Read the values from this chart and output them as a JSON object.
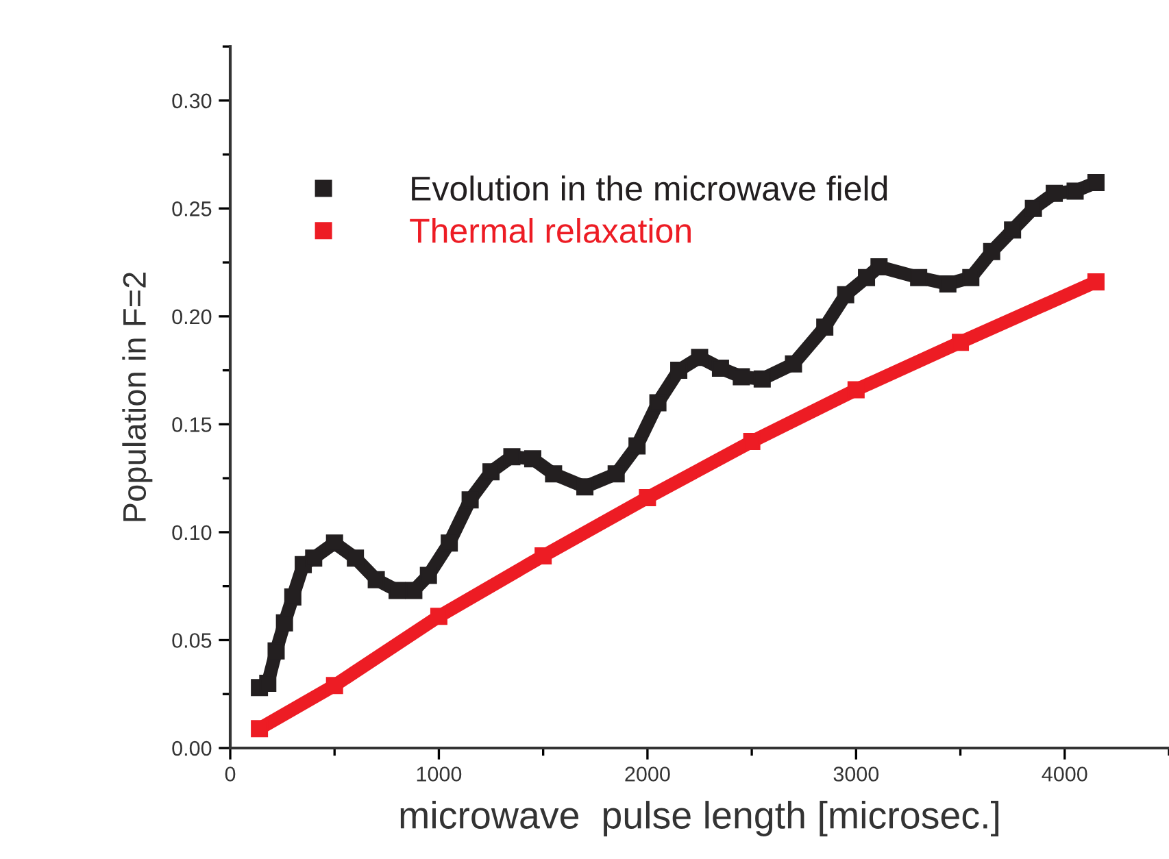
{
  "chart_data": {
    "type": "line",
    "xlabel": "microwave  pulse length [microsec.]",
    "ylabel": "Population in F=2",
    "xlim": [
      0,
      4500
    ],
    "xticks": [
      0,
      1000,
      2000,
      3000,
      4000
    ],
    "ylim": [
      0,
      0.325
    ],
    "yticks": [
      {
        "value": 0,
        "label": "0.00"
      },
      {
        "value": 0.05,
        "label": "0.05"
      },
      {
        "value": 0.1,
        "label": "0.10"
      },
      {
        "value": 0.15,
        "label": "0.15"
      },
      {
        "value": 0.2,
        "label": "0.20"
      },
      {
        "value": 0.25,
        "label": "0.25"
      },
      {
        "value": 0.3,
        "label": "0.30"
      }
    ],
    "marker": "square",
    "legend": "top left",
    "grid": false,
    "series": [
      {
        "name": "Evolution in the microwave field",
        "color": "#231f20",
        "x": [
          140,
          180,
          220,
          260,
          300,
          350,
          400,
          500,
          600,
          700,
          800,
          880,
          950,
          1050,
          1150,
          1250,
          1350,
          1450,
          1550,
          1700,
          1850,
          1950,
          2050,
          2150,
          2250,
          2350,
          2450,
          2550,
          2700,
          2850,
          2950,
          3050,
          3110,
          3300,
          3440,
          3550,
          3650,
          3750,
          3850,
          3950,
          4050,
          4150
        ],
        "values": [
          0.028,
          0.03,
          0.045,
          0.058,
          0.07,
          0.085,
          0.088,
          0.095,
          0.088,
          0.078,
          0.073,
          0.073,
          0.08,
          0.095,
          0.115,
          0.128,
          0.135,
          0.134,
          0.127,
          0.121,
          0.127,
          0.14,
          0.16,
          0.175,
          0.181,
          0.176,
          0.172,
          0.171,
          0.178,
          0.195,
          0.21,
          0.218,
          0.223,
          0.218,
          0.215,
          0.218,
          0.23,
          0.24,
          0.25,
          0.257,
          0.258,
          0.262
        ]
      },
      {
        "name": "Thermal relaxation",
        "color": "#ed1c24",
        "x": [
          140,
          500,
          1000,
          1500,
          2000,
          2500,
          3000,
          3500,
          4150
        ],
        "values": [
          0.009,
          0.029,
          0.061,
          0.089,
          0.116,
          0.142,
          0.166,
          0.188,
          0.216
        ]
      }
    ]
  }
}
